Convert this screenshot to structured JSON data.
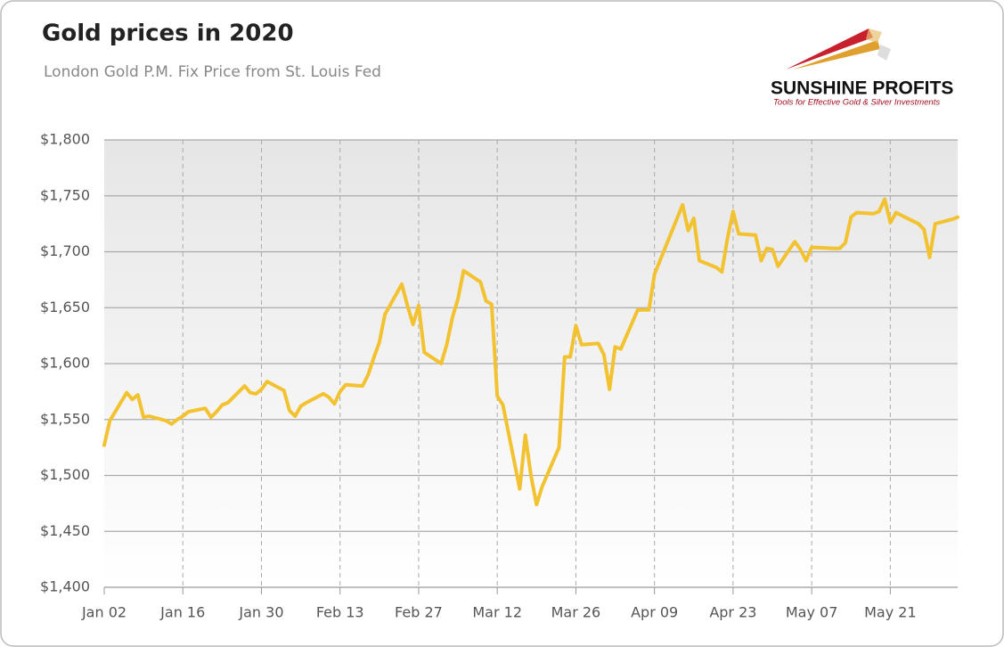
{
  "chart_data": {
    "type": "line",
    "title": "Gold prices in 2020",
    "subtitle": "London Gold P.M. Fix Price from St. Louis Fed",
    "logo": {
      "name": "SUNSHINE PROFITS",
      "tagline": "Tools for Effective Gold & Silver Investments"
    },
    "color": "#f3c230",
    "grid": true,
    "x": [
      "Jan 02",
      "Jan 03",
      "Jan 06",
      "Jan 07",
      "Jan 08",
      "Jan 09",
      "Jan 10",
      "Jan 13",
      "Jan 14",
      "Jan 15",
      "Jan 16",
      "Jan 17",
      "Jan 20",
      "Jan 21",
      "Jan 22",
      "Jan 23",
      "Jan 24",
      "Jan 27",
      "Jan 28",
      "Jan 29",
      "Jan 30",
      "Jan 31",
      "Feb 03",
      "Feb 04",
      "Feb 05",
      "Feb 06",
      "Feb 07",
      "Feb 10",
      "Feb 11",
      "Feb 12",
      "Feb 13",
      "Feb 14",
      "Feb 17",
      "Feb 18",
      "Feb 19",
      "Feb 20",
      "Feb 21",
      "Feb 24",
      "Feb 25",
      "Feb 26",
      "Feb 27",
      "Feb 28",
      "Mar 02",
      "Mar 03",
      "Mar 04",
      "Mar 05",
      "Mar 06",
      "Mar 09",
      "Mar 10",
      "Mar 11",
      "Mar 12",
      "Mar 13",
      "Mar 16",
      "Mar 17",
      "Mar 18",
      "Mar 19",
      "Mar 20",
      "Mar 23",
      "Mar 24",
      "Mar 25",
      "Mar 26",
      "Mar 27",
      "Mar 30",
      "Mar 31",
      "Apr 01",
      "Apr 02",
      "Apr 03",
      "Apr 06",
      "Apr 07",
      "Apr 08",
      "Apr 09",
      "Apr 14",
      "Apr 15",
      "Apr 16",
      "Apr 17",
      "Apr 20",
      "Apr 21",
      "Apr 22",
      "Apr 23",
      "Apr 24",
      "Apr 27",
      "Apr 28",
      "Apr 29",
      "Apr 30",
      "May 01",
      "May 04",
      "May 05",
      "May 06",
      "May 07",
      "May 11",
      "May 12",
      "May 13",
      "May 14",
      "May 15",
      "May 18",
      "May 19",
      "May 20",
      "May 21",
      "May 22",
      "May 26",
      "May 27",
      "May 28",
      "May 29",
      "Jun 01",
      "Jun 02"
    ],
    "values": [
      1527,
      1549,
      1574,
      1568,
      1572,
      1552,
      1553,
      1549,
      1546,
      1550,
      1553,
      1557,
      1560,
      1552,
      1557,
      1563,
      1565,
      1580,
      1574,
      1573,
      1577,
      1584,
      1576,
      1558,
      1553,
      1562,
      1565,
      1573,
      1570,
      1564,
      1575,
      1581,
      1580,
      1590,
      1605,
      1619,
      1644,
      1671,
      1652,
      1635,
      1652,
      1610,
      1600,
      1617,
      1641,
      1658,
      1683,
      1673,
      1656,
      1653,
      1571,
      1563,
      1488,
      1536,
      1500,
      1474,
      1490,
      1525,
      1606,
      1606,
      1634,
      1617,
      1618,
      1608,
      1577,
      1615,
      1613,
      1648,
      1648,
      1648,
      1680,
      1742,
      1719,
      1730,
      1692,
      1686,
      1682,
      1712,
      1736,
      1716,
      1715,
      1692,
      1703,
      1702,
      1687,
      1709,
      1702,
      1692,
      1704,
      1703,
      1703,
      1708,
      1731,
      1735,
      1734,
      1736,
      1747,
      1726,
      1735,
      1725,
      1720,
      1695,
      1725,
      1729,
      1731
    ],
    "xlim": [
      "Jan 02",
      "Jun 02"
    ],
    "xticks": [
      "Jan 02",
      "Jan 16",
      "Jan 30",
      "Feb 13",
      "Feb 27",
      "Mar 12",
      "Mar 26",
      "Apr 09",
      "Apr 23",
      "May 07",
      "May 21"
    ],
    "ylim": [
      1400,
      1800
    ],
    "yticks": [
      {
        "value": 1400,
        "label": "$1,400"
      },
      {
        "value": 1450,
        "label": "$1,450"
      },
      {
        "value": 1500,
        "label": "$1,500"
      },
      {
        "value": 1550,
        "label": "$1,550"
      },
      {
        "value": 1600,
        "label": "$1,600"
      },
      {
        "value": 1650,
        "label": "$1,650"
      },
      {
        "value": 1700,
        "label": "$1,700"
      },
      {
        "value": 1750,
        "label": "$1,750"
      },
      {
        "value": 1800,
        "label": "$1,800"
      }
    ]
  }
}
